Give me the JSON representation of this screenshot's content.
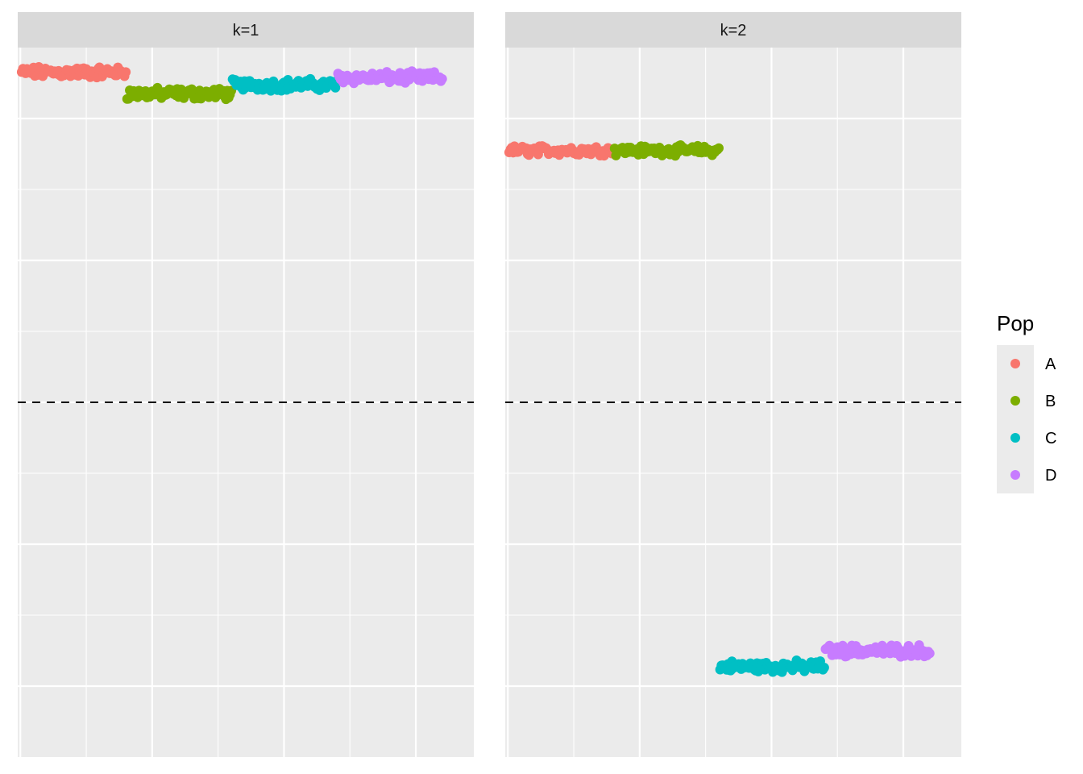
{
  "chart_data": {
    "type": "scatter",
    "title": "",
    "xlabel": "",
    "ylabel": "",
    "facets": [
      "k=1",
      "k=2"
    ],
    "xlim": [
      -2,
      344
    ],
    "ylim": [
      -1.0,
      1.0
    ],
    "x_gridlines": [
      0,
      50,
      100,
      150,
      200,
      250,
      300
    ],
    "y_gridlines": [
      -0.8,
      -0.6,
      -0.4,
      -0.2,
      0,
      0.2,
      0.4,
      0.6,
      0.8
    ],
    "hline": {
      "y": 0,
      "style": "dashed"
    },
    "legend": {
      "title": "Pop",
      "position": "right",
      "entries": [
        {
          "label": "A",
          "color": "#F8766D"
        },
        {
          "label": "B",
          "color": "#7CAE00"
        },
        {
          "label": "C",
          "color": "#00BFC4"
        },
        {
          "label": "D",
          "color": "#C77CFF"
        }
      ]
    },
    "panels": [
      {
        "facet": "k=1",
        "series": [
          {
            "name": "A",
            "x_range": [
              1,
              80
            ],
            "y_center": 0.93,
            "y_jitter": 0.012
          },
          {
            "name": "B",
            "x_range": [
              81,
              160
            ],
            "y_center": 0.87,
            "y_jitter": 0.012
          },
          {
            "name": "C",
            "x_range": [
              161,
              240
            ],
            "y_center": 0.895,
            "y_jitter": 0.012
          },
          {
            "name": "D",
            "x_range": [
              241,
              320
            ],
            "y_center": 0.915,
            "y_jitter": 0.012
          }
        ]
      },
      {
        "facet": "k=2",
        "series": [
          {
            "name": "A",
            "x_range": [
              1,
              80
            ],
            "y_center": 0.71,
            "y_jitter": 0.01
          },
          {
            "name": "B",
            "x_range": [
              81,
              160
            ],
            "y_center": 0.71,
            "y_jitter": 0.01
          },
          {
            "name": "C",
            "x_range": [
              161,
              240
            ],
            "y_center": -0.745,
            "y_jitter": 0.012
          },
          {
            "name": "D",
            "x_range": [
              241,
              320
            ],
            "y_center": -0.7,
            "y_jitter": 0.012
          }
        ]
      }
    ]
  }
}
